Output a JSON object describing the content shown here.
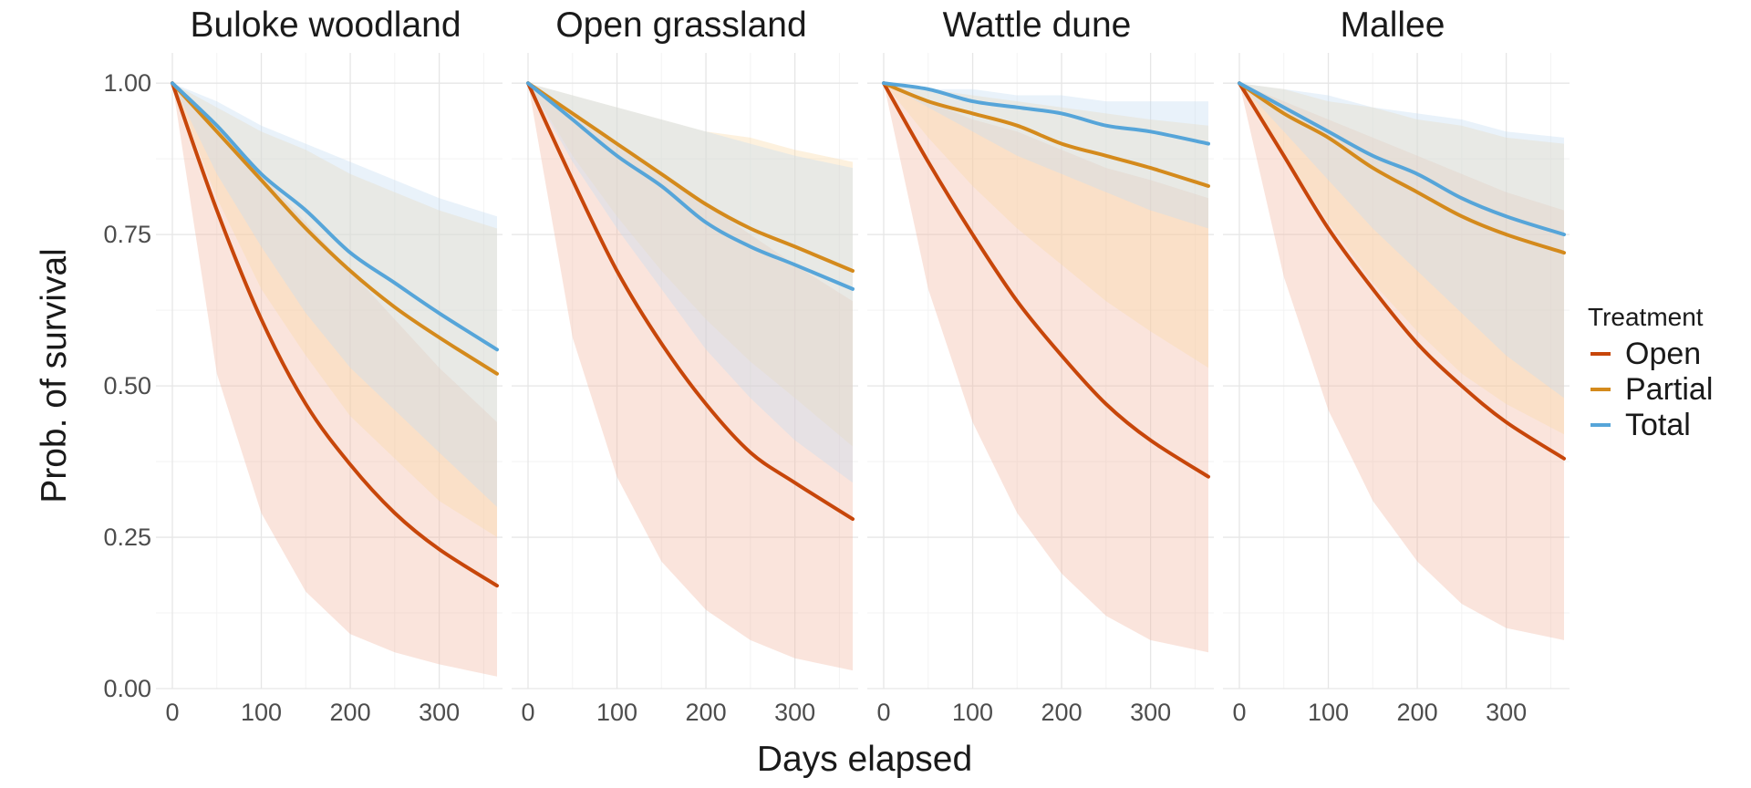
{
  "chart_data": {
    "type": "line",
    "xlabel": "Days elapsed",
    "ylabel": "Prob. of survival",
    "xlim": [
      0,
      365
    ],
    "ylim": [
      0,
      1.05
    ],
    "x_ticks": [
      0,
      100,
      200,
      300
    ],
    "y_ticks": [
      0,
      0.25,
      0.5,
      0.75,
      1.0
    ],
    "y_tick_labels": [
      "0.00",
      "0.25",
      "0.50",
      "0.75",
      "1.00"
    ],
    "grid": true,
    "legend": {
      "title": "Treatment",
      "position": "right",
      "entries": [
        "Open",
        "Partial",
        "Total"
      ]
    },
    "series_colors": {
      "Open": "#C7460A",
      "Partial": "#D48A1C",
      "Total": "#56A5D9"
    },
    "band_colors": {
      "Open": "#F2B9A4",
      "Partial": "#FAD9A8",
      "Total": "#C6DDF2"
    },
    "x": [
      0,
      50,
      100,
      150,
      200,
      250,
      300,
      365
    ],
    "facets": [
      {
        "title": "Buloke woodland",
        "series": [
          {
            "name": "Open",
            "values": [
              1.0,
              0.79,
              0.61,
              0.47,
              0.37,
              0.29,
              0.23,
              0.17
            ],
            "lower": [
              1.0,
              0.52,
              0.29,
              0.16,
              0.09,
              0.06,
              0.04,
              0.02
            ],
            "upper": [
              1.0,
              0.93,
              0.85,
              0.77,
              0.69,
              0.61,
              0.53,
              0.44
            ]
          },
          {
            "name": "Partial",
            "values": [
              1.0,
              0.92,
              0.84,
              0.76,
              0.69,
              0.63,
              0.58,
              0.52
            ],
            "lower": [
              1.0,
              0.81,
              0.66,
              0.55,
              0.45,
              0.38,
              0.31,
              0.25
            ],
            "upper": [
              1.0,
              0.96,
              0.92,
              0.89,
              0.85,
              0.82,
              0.79,
              0.76
            ]
          },
          {
            "name": "Total",
            "values": [
              1.0,
              0.93,
              0.85,
              0.79,
              0.72,
              0.67,
              0.62,
              0.56
            ],
            "lower": [
              1.0,
              0.85,
              0.73,
              0.62,
              0.53,
              0.46,
              0.39,
              0.3
            ],
            "upper": [
              1.0,
              0.97,
              0.93,
              0.9,
              0.87,
              0.84,
              0.81,
              0.78
            ]
          }
        ]
      },
      {
        "title": "Open grassland",
        "series": [
          {
            "name": "Open",
            "values": [
              1.0,
              0.84,
              0.69,
              0.57,
              0.47,
              0.39,
              0.34,
              0.28
            ],
            "lower": [
              1.0,
              0.58,
              0.35,
              0.21,
              0.13,
              0.08,
              0.05,
              0.03
            ],
            "upper": [
              1.0,
              0.95,
              0.9,
              0.85,
              0.8,
              0.75,
              0.7,
              0.64
            ]
          },
          {
            "name": "Partial",
            "values": [
              1.0,
              0.95,
              0.9,
              0.85,
              0.8,
              0.76,
              0.73,
              0.69
            ],
            "lower": [
              1.0,
              0.88,
              0.78,
              0.69,
              0.61,
              0.54,
              0.48,
              0.4
            ],
            "upper": [
              1.0,
              0.98,
              0.96,
              0.94,
              0.92,
              0.91,
              0.89,
              0.87
            ]
          },
          {
            "name": "Total",
            "values": [
              1.0,
              0.94,
              0.88,
              0.83,
              0.77,
              0.73,
              0.7,
              0.66
            ],
            "lower": [
              1.0,
              0.87,
              0.76,
              0.66,
              0.56,
              0.48,
              0.41,
              0.34
            ],
            "upper": [
              1.0,
              0.98,
              0.96,
              0.94,
              0.92,
              0.9,
              0.88,
              0.86
            ]
          }
        ]
      },
      {
        "title": "Wattle dune",
        "series": [
          {
            "name": "Open",
            "values": [
              1.0,
              0.87,
              0.75,
              0.64,
              0.55,
              0.47,
              0.41,
              0.35
            ],
            "lower": [
              1.0,
              0.66,
              0.44,
              0.29,
              0.19,
              0.12,
              0.08,
              0.06
            ],
            "upper": [
              1.0,
              0.97,
              0.94,
              0.92,
              0.89,
              0.86,
              0.84,
              0.81
            ]
          },
          {
            "name": "Partial",
            "values": [
              1.0,
              0.97,
              0.95,
              0.93,
              0.9,
              0.88,
              0.86,
              0.83
            ],
            "lower": [
              1.0,
              0.91,
              0.83,
              0.76,
              0.7,
              0.64,
              0.59,
              0.53
            ],
            "upper": [
              1.0,
              0.99,
              0.98,
              0.97,
              0.96,
              0.95,
              0.94,
              0.93
            ]
          },
          {
            "name": "Total",
            "values": [
              1.0,
              0.99,
              0.97,
              0.96,
              0.95,
              0.93,
              0.92,
              0.9
            ],
            "lower": [
              1.0,
              0.96,
              0.92,
              0.88,
              0.85,
              0.82,
              0.79,
              0.76
            ],
            "upper": [
              1.0,
              0.99,
              0.99,
              0.98,
              0.98,
              0.97,
              0.97,
              0.97
            ]
          }
        ]
      },
      {
        "title": "Mallee",
        "series": [
          {
            "name": "Open",
            "values": [
              1.0,
              0.88,
              0.76,
              0.66,
              0.57,
              0.5,
              0.44,
              0.38
            ],
            "lower": [
              1.0,
              0.68,
              0.46,
              0.31,
              0.21,
              0.14,
              0.1,
              0.08
            ],
            "upper": [
              1.0,
              0.97,
              0.94,
              0.91,
              0.88,
              0.85,
              0.82,
              0.79
            ]
          },
          {
            "name": "Partial",
            "values": [
              1.0,
              0.95,
              0.91,
              0.86,
              0.82,
              0.78,
              0.75,
              0.72
            ],
            "lower": [
              1.0,
              0.88,
              0.77,
              0.67,
              0.59,
              0.52,
              0.47,
              0.42
            ],
            "upper": [
              1.0,
              0.99,
              0.97,
              0.96,
              0.94,
              0.93,
              0.91,
              0.9
            ]
          },
          {
            "name": "Total",
            "values": [
              1.0,
              0.96,
              0.92,
              0.88,
              0.85,
              0.81,
              0.78,
              0.75
            ],
            "lower": [
              1.0,
              0.92,
              0.84,
              0.76,
              0.69,
              0.62,
              0.55,
              0.48
            ],
            "upper": [
              1.0,
              0.99,
              0.98,
              0.96,
              0.95,
              0.94,
              0.92,
              0.91
            ]
          }
        ]
      }
    ]
  }
}
